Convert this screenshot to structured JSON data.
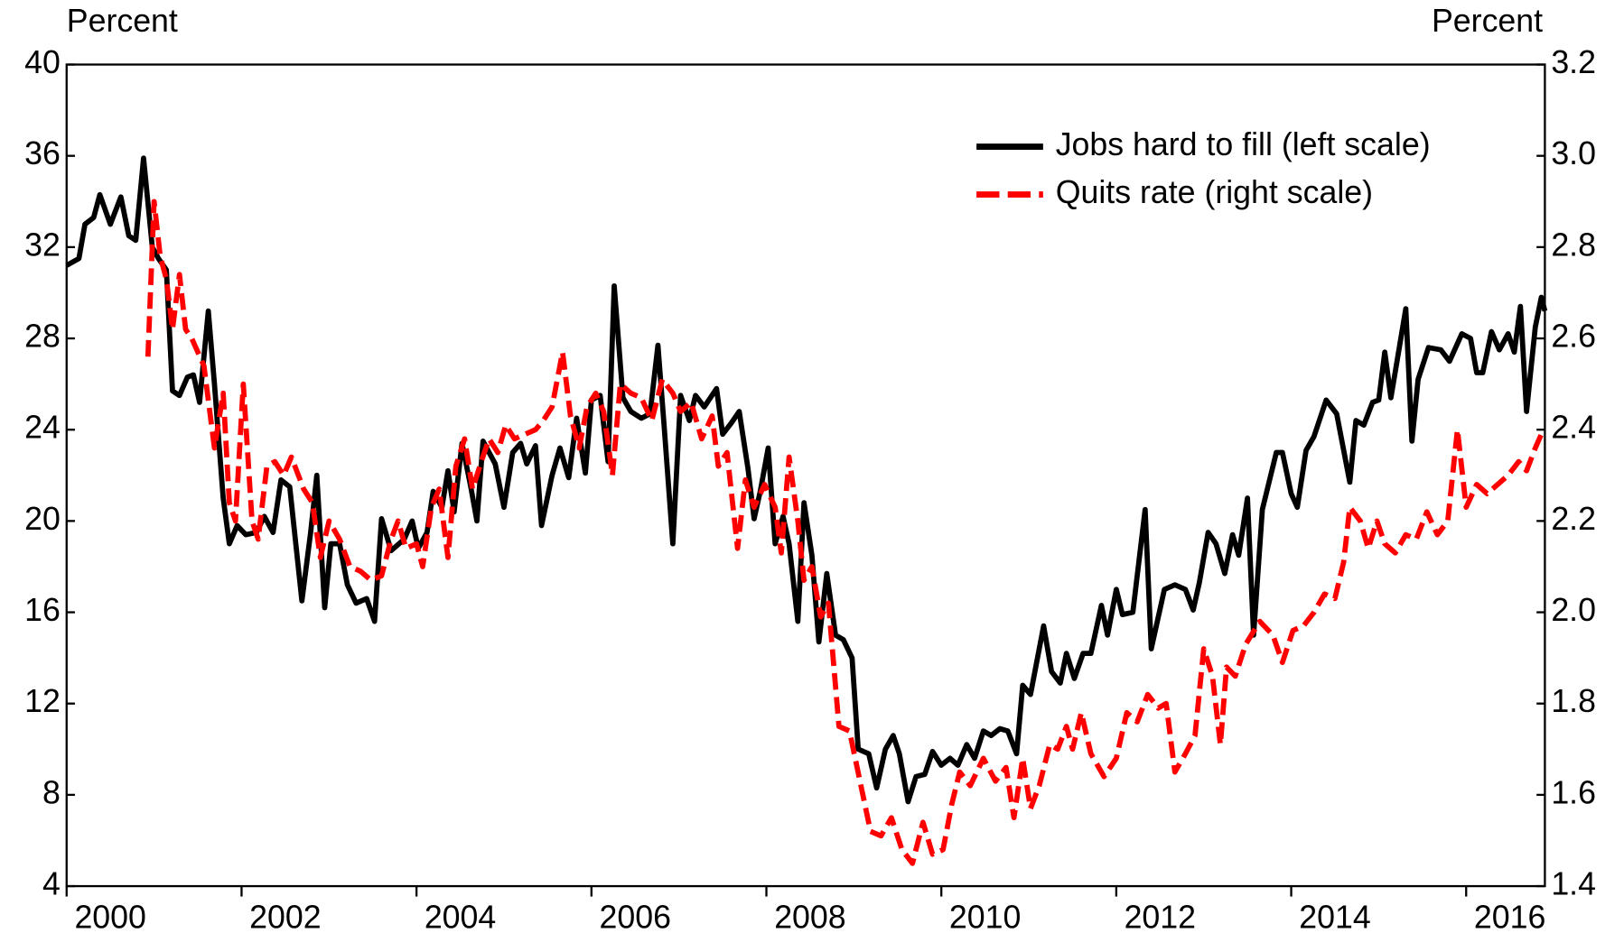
{
  "chart_data": {
    "type": "line",
    "y_label": "Percent",
    "y2_label": "Percent",
    "xlim": [
      2000,
      2016.9
    ],
    "xticks": [
      2000,
      2002,
      2004,
      2006,
      2008,
      2010,
      2012,
      2014,
      2016
    ],
    "ylim": [
      4,
      40
    ],
    "yticks": [
      4,
      8,
      12,
      16,
      20,
      24,
      28,
      32,
      36,
      40
    ],
    "y2lim": [
      1.4,
      3.2
    ],
    "y2ticks": [
      1.4,
      1.6,
      1.8,
      {
        "value": 2,
        "label": "2.0"
      },
      2.2,
      2.4,
      2.6,
      2.8,
      {
        "value": 3,
        "label": "3.0"
      },
      3.2
    ],
    "legend": "upper right",
    "series": [
      {
        "name": "Jobs hard to fill (left scale)",
        "color": "#000000",
        "axis": "y",
        "dashed": false,
        "x": [
          2000.0,
          2000.14,
          2000.21,
          2000.31,
          2000.38,
          2000.5,
          2000.62,
          2000.71,
          2000.79,
          2000.88,
          2000.98,
          2001.05,
          2001.14,
          2001.21,
          2001.29,
          2001.38,
          2001.45,
          2001.52,
          2001.62,
          2001.69,
          2001.79,
          2001.86,
          2001.95,
          2002.05,
          2002.17,
          2002.26,
          2002.36,
          2002.45,
          2002.55,
          2002.69,
          2002.79,
          2002.86,
          2002.95,
          2003.02,
          2003.12,
          2003.21,
          2003.31,
          2003.43,
          2003.52,
          2003.6,
          2003.71,
          2003.86,
          2003.95,
          2004.02,
          2004.12,
          2004.19,
          2004.29,
          2004.36,
          2004.43,
          2004.52,
          2004.62,
          2004.69,
          2004.76,
          2004.9,
          2005.0,
          2005.1,
          2005.19,
          2005.26,
          2005.36,
          2005.43,
          2005.55,
          2005.64,
          2005.74,
          2005.83,
          2005.93,
          2006.0,
          2006.1,
          2006.19,
          2006.26,
          2006.36,
          2006.45,
          2006.57,
          2006.67,
          2006.76,
          2006.83,
          2006.93,
          2007.02,
          2007.12,
          2007.19,
          2007.29,
          2007.43,
          2007.5,
          2007.6,
          2007.69,
          2007.79,
          2007.86,
          2007.93,
          2008.02,
          2008.1,
          2008.19,
          2008.26,
          2008.36,
          2008.43,
          2008.52,
          2008.6,
          2008.69,
          2008.79,
          2008.88,
          2008.98,
          2009.05,
          2009.17,
          2009.26,
          2009.36,
          2009.45,
          2009.52,
          2009.62,
          2009.71,
          2009.81,
          2009.9,
          2010.0,
          2010.1,
          2010.19,
          2010.29,
          2010.38,
          2010.48,
          2010.57,
          2010.67,
          2010.76,
          2010.86,
          2010.93,
          2011.02,
          2011.17,
          2011.26,
          2011.36,
          2011.43,
          2011.52,
          2011.62,
          2011.71,
          2011.83,
          2011.9,
          2012.0,
          2012.07,
          2012.19,
          2012.33,
          2012.4,
          2012.55,
          2012.67,
          2012.79,
          2012.88,
          2012.95,
          2013.05,
          2013.14,
          2013.24,
          2013.33,
          2013.4,
          2013.5,
          2013.57,
          2013.67,
          2013.83,
          2013.9,
          2014.0,
          2014.07,
          2014.17,
          2014.26,
          2014.4,
          2014.52,
          2014.67,
          2014.74,
          2014.83,
          2014.93,
          2015.0,
          2015.07,
          2015.14,
          2015.31,
          2015.38,
          2015.45,
          2015.57,
          2015.71,
          2015.81,
          2015.95,
          2016.05,
          2016.12,
          2016.19,
          2016.29,
          2016.38,
          2016.48,
          2016.55,
          2016.62,
          2016.69,
          2016.79,
          2016.86,
          2016.9
        ],
        "values": [
          31.2,
          31.5,
          33,
          33.3,
          34.3,
          33,
          34.2,
          32.5,
          32.3,
          35.9,
          32,
          31.5,
          31,
          25.7,
          25.5,
          26.3,
          26.4,
          25.2,
          29.2,
          26,
          21,
          19,
          19.8,
          19.4,
          19.5,
          20.2,
          19.5,
          21.8,
          21.5,
          16.5,
          19.5,
          22,
          16.2,
          19,
          19,
          17.2,
          16.4,
          16.6,
          15.6,
          20.1,
          18.7,
          19.2,
          20,
          18.8,
          19.5,
          21.3,
          20.6,
          22.2,
          20.4,
          23.4,
          21.5,
          20,
          23.5,
          22.5,
          20.6,
          23,
          23.4,
          22.5,
          23.3,
          19.8,
          22,
          23.2,
          21.9,
          24.5,
          22.1,
          25.3,
          25.5,
          22.6,
          30.3,
          25.4,
          24.8,
          24.5,
          24.7,
          27.7,
          24.2,
          19,
          25.5,
          24.4,
          25.5,
          25,
          25.8,
          23.8,
          24.3,
          24.8,
          22.3,
          20.1,
          21.3,
          23.2,
          19,
          20.2,
          19,
          15.6,
          20.8,
          18.5,
          14.7,
          17.7,
          15,
          14.8,
          14,
          10,
          9.8,
          8.3,
          10,
          10.6,
          9.8,
          7.7,
          8.8,
          8.9,
          9.9,
          9.3,
          9.6,
          9.3,
          10.2,
          9.6,
          10.8,
          10.6,
          10.9,
          10.8,
          9.8,
          12.8,
          12.4,
          15.4,
          13.4,
          12.9,
          14.2,
          13.1,
          14.2,
          14.2,
          16.3,
          15,
          17,
          15.9,
          16,
          20.5,
          14.4,
          17,
          17.2,
          17,
          16.1,
          17.3,
          19.5,
          19,
          17.7,
          19.4,
          18.5,
          21,
          15,
          20.5,
          23,
          23,
          21.2,
          20.6,
          23.1,
          23.7,
          25.3,
          24.7,
          21.7,
          24.4,
          24.2,
          25.2,
          25.3,
          27.4,
          25.4,
          29.3,
          23.5,
          26.2,
          27.6,
          27.5,
          27,
          28.2,
          28,
          26.5,
          26.5,
          28.3,
          27.5,
          28.2,
          27.4,
          29.4,
          24.8,
          28.5,
          29.8,
          29.2
        ]
      },
      {
        "name": "Quits rate (right scale)",
        "color": "#ff0000",
        "axis": "y2",
        "dashed": true,
        "x": [
          2000.93,
          2001.0,
          2001.07,
          2001.14,
          2001.21,
          2001.29,
          2001.36,
          2001.43,
          2001.57,
          2001.69,
          2001.79,
          2001.86,
          2001.93,
          2002.02,
          2002.12,
          2002.19,
          2002.29,
          2002.38,
          2002.48,
          2002.57,
          2002.71,
          2002.81,
          2002.9,
          2003.0,
          2003.12,
          2003.24,
          2003.36,
          2003.48,
          2003.6,
          2003.71,
          2003.79,
          2003.88,
          2004.0,
          2004.07,
          2004.17,
          2004.26,
          2004.36,
          2004.45,
          2004.55,
          2004.64,
          2004.74,
          2004.83,
          2004.93,
          2005.02,
          2005.12,
          2005.24,
          2005.36,
          2005.45,
          2005.55,
          2005.67,
          2005.76,
          2005.86,
          2005.95,
          2006.05,
          2006.14,
          2006.24,
          2006.33,
          2006.45,
          2006.57,
          2006.69,
          2006.81,
          2006.93,
          2007.02,
          2007.14,
          2007.26,
          2007.38,
          2007.45,
          2007.55,
          2007.67,
          2007.76,
          2007.86,
          2007.98,
          2008.1,
          2008.17,
          2008.26,
          2008.36,
          2008.43,
          2008.52,
          2008.62,
          2008.71,
          2008.83,
          2008.95,
          2009.07,
          2009.19,
          2009.31,
          2009.43,
          2009.55,
          2009.67,
          2009.79,
          2009.9,
          2010.02,
          2010.12,
          2010.21,
          2010.33,
          2010.48,
          2010.62,
          2010.74,
          2010.83,
          2010.93,
          2011.02,
          2011.12,
          2011.24,
          2011.33,
          2011.43,
          2011.5,
          2011.6,
          2011.71,
          2011.86,
          2012.0,
          2012.12,
          2012.24,
          2012.36,
          2012.48,
          2012.57,
          2012.67,
          2012.79,
          2012.9,
          2013.0,
          2013.1,
          2013.19,
          2013.26,
          2013.36,
          2013.48,
          2013.64,
          2013.79,
          2013.9,
          2014.02,
          2014.14,
          2014.26,
          2014.38,
          2014.5,
          2014.6,
          2014.67,
          2014.79,
          2014.88,
          2014.98,
          2015.07,
          2015.19,
          2015.31,
          2015.43,
          2015.55,
          2015.67,
          2015.79,
          2015.9,
          2016.0,
          2016.12,
          2016.24,
          2016.36,
          2016.48,
          2016.6,
          2016.69,
          2016.79,
          2016.86
        ],
        "values": [
          2.56,
          2.9,
          2.78,
          2.73,
          2.62,
          2.74,
          2.62,
          2.6,
          2.54,
          2.36,
          2.48,
          2.24,
          2.2,
          2.5,
          2.2,
          2.16,
          2.32,
          2.33,
          2.3,
          2.34,
          2.27,
          2.24,
          2.12,
          2.2,
          2.16,
          2.1,
          2.09,
          2.07,
          2.08,
          2.16,
          2.2,
          2.14,
          2.15,
          2.1,
          2.23,
          2.27,
          2.12,
          2.32,
          2.38,
          2.27,
          2.33,
          2.38,
          2.35,
          2.41,
          2.38,
          2.39,
          2.4,
          2.42,
          2.45,
          2.57,
          2.43,
          2.36,
          2.45,
          2.48,
          2.44,
          2.3,
          2.5,
          2.48,
          2.47,
          2.42,
          2.51,
          2.48,
          2.44,
          2.46,
          2.38,
          2.43,
          2.32,
          2.35,
          2.14,
          2.29,
          2.23,
          2.28,
          2.23,
          2.13,
          2.34,
          2.2,
          2.07,
          2.1,
          1.99,
          2.02,
          1.75,
          1.74,
          1.63,
          1.52,
          1.51,
          1.55,
          1.48,
          1.45,
          1.54,
          1.47,
          1.48,
          1.58,
          1.65,
          1.62,
          1.68,
          1.63,
          1.66,
          1.55,
          1.68,
          1.57,
          1.62,
          1.71,
          1.7,
          1.75,
          1.7,
          1.78,
          1.69,
          1.64,
          1.68,
          1.78,
          1.76,
          1.82,
          1.79,
          1.8,
          1.65,
          1.69,
          1.73,
          1.92,
          1.86,
          1.71,
          1.88,
          1.86,
          1.93,
          1.98,
          1.95,
          1.89,
          1.96,
          1.97,
          2.0,
          2.04,
          2.03,
          2.11,
          2.23,
          2.2,
          2.14,
          2.2,
          2.15,
          2.13,
          2.17,
          2.16,
          2.22,
          2.17,
          2.2,
          2.4,
          2.23,
          2.28,
          2.26,
          2.28,
          2.3,
          2.33,
          2.31,
          2.36,
          2.39
        ]
      }
    ]
  }
}
